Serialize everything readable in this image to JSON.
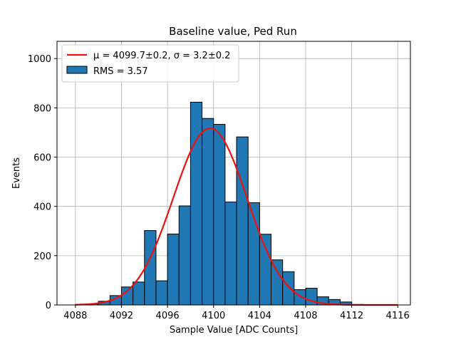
{
  "chart_data": {
    "type": "bar",
    "title": "Baseline value, Ped Run",
    "xlabel": "Sample Value [ADC Counts]",
    "ylabel": "Events",
    "xlim": [
      4086.4,
      4117.1
    ],
    "ylim": [
      0,
      1070
    ],
    "xticks": [
      4088,
      4092,
      4096,
      4100,
      4104,
      4108,
      4112,
      4116
    ],
    "yticks": [
      0,
      200,
      400,
      600,
      800,
      1000
    ],
    "grid": true,
    "legend_position": "top-left",
    "bin_edges": [
      4088,
      4089,
      4090,
      4091,
      4092,
      4093,
      4094,
      4095,
      4096,
      4097,
      4098,
      4099,
      4100,
      4101,
      4102,
      4103,
      4104,
      4105,
      4106,
      4107,
      4108,
      4109,
      4110,
      4111,
      4112,
      4113,
      4114,
      4115,
      4116
    ],
    "counts": [
      2,
      3,
      15,
      38,
      73,
      93,
      302,
      98,
      288,
      402,
      823,
      757,
      733,
      418,
      682,
      415,
      287,
      183,
      135,
      62,
      68,
      33,
      22,
      12,
      2,
      1,
      0,
      0
    ],
    "series": [
      {
        "name": "μ = 4099.7±0.2, σ = 3.2±0.2",
        "kind": "gaussian-fit",
        "color": "#ee1111",
        "mu": 4099.7,
        "sigma": 3.2,
        "amplitude": 717,
        "x_range": [
          4088,
          4116
        ]
      },
      {
        "name": "RMS = 3.57",
        "kind": "histogram",
        "color": "#1f77b4"
      }
    ]
  }
}
